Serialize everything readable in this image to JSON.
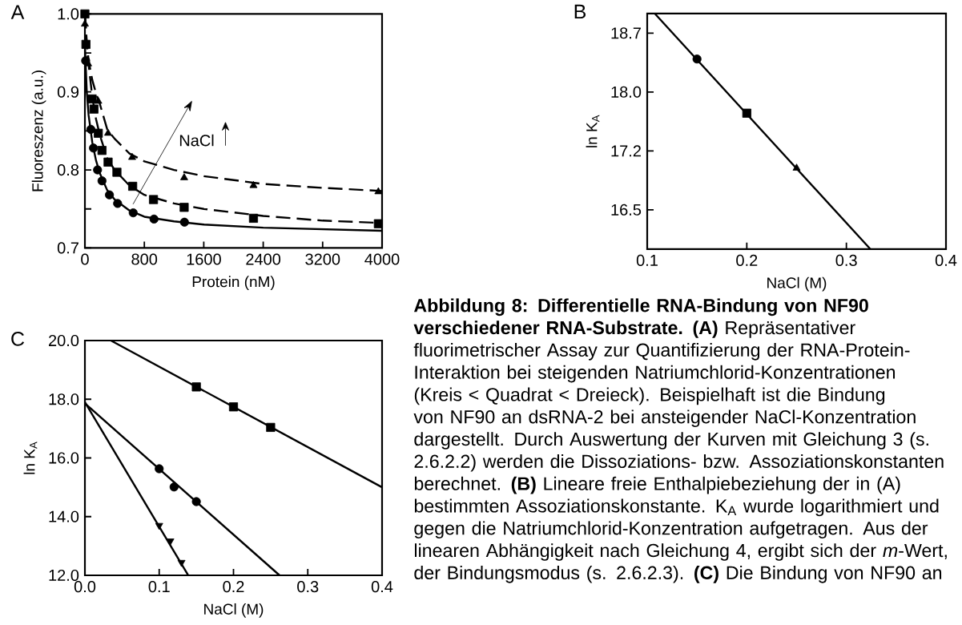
{
  "chart_data": [
    {
      "type": "scatter",
      "title": "A",
      "xlabel": "Protein (nM)",
      "ylabel": "Fluoreszenz (a.u.)",
      "xlim": [
        0,
        4000
      ],
      "xticks": [
        0,
        800,
        1600,
        2400,
        3200,
        4000
      ],
      "ylim": [
        0.7,
        1.0
      ],
      "yticks": [
        0.7,
        {
          "value": 0.75,
          "label": null
        },
        0.8,
        {
          "value": 0.85,
          "label": null
        },
        0.9,
        {
          "value": 0.95,
          "label": null
        },
        {
          "value": 1.0,
          "label": "1.0"
        }
      ],
      "annotations": [
        "NaCl"
      ],
      "series": [
        {
          "type": "scatter",
          "marker": "circle",
          "color": "#000000",
          "x": [
            10,
            80,
            115,
            170,
            230,
            330,
            440,
            650,
            930,
            1340
          ],
          "values": [
            0.94,
            0.852,
            0.828,
            0.8,
            0.786,
            0.768,
            0.757,
            0.745,
            0.737,
            0.733
          ]
        },
        {
          "type": "scatter",
          "marker": "square",
          "color": "#000000",
          "x": [
            0,
            14,
            97,
            122,
            180,
            230,
            312,
            431,
            643,
            923,
            1336,
            2269,
            3950
          ],
          "values": [
            1.0,
            0.961,
            0.891,
            0.878,
            0.847,
            0.825,
            0.81,
            0.797,
            0.779,
            0.762,
            0.752,
            0.738,
            0.731
          ]
        },
        {
          "type": "scatter",
          "marker": "triangle",
          "color": "#000000",
          "x": [
            0,
            43,
            180,
            312,
            636,
            1336,
            2269,
            3950
          ],
          "values": [
            0.987,
            0.936,
            0.888,
            0.847,
            0.816,
            0.79,
            0.78,
            0.772
          ]
        },
        {
          "type": "line",
          "line_style": "solid",
          "color": "#000000",
          "x": [
            0,
            25,
            50,
            100,
            150,
            200,
            300,
            400,
            600,
            800,
            1200,
            1600,
            2400,
            3200,
            4000
          ],
          "values": [
            0.96,
            0.9,
            0.87,
            0.835,
            0.812,
            0.796,
            0.774,
            0.762,
            0.748,
            0.74,
            0.734,
            0.73,
            0.726,
            0.724,
            0.722
          ]
        },
        {
          "type": "line",
          "line_style": "dashed",
          "color": "#000000",
          "x": [
            0,
            25,
            50,
            100,
            150,
            200,
            300,
            400,
            600,
            800,
            1200,
            1600,
            2400,
            3200,
            4000
          ],
          "values": [
            1.0,
            0.96,
            0.935,
            0.893,
            0.865,
            0.845,
            0.815,
            0.8,
            0.78,
            0.768,
            0.757,
            0.75,
            0.741,
            0.735,
            0.732
          ]
        },
        {
          "type": "line",
          "line_style": "dashed",
          "color": "#000000",
          "x": [
            0,
            25,
            50,
            100,
            150,
            200,
            300,
            400,
            600,
            800,
            1200,
            1600,
            2400,
            3200,
            4000
          ],
          "values": [
            1.0,
            0.965,
            0.94,
            0.915,
            0.898,
            0.885,
            0.852,
            0.84,
            0.821,
            0.811,
            0.8,
            0.792,
            0.782,
            0.777,
            0.773
          ]
        }
      ]
    },
    {
      "type": "scatter",
      "title": "B",
      "xlabel": "NaCl (M)",
      "ylabel": "ln K$_{A}$",
      "xlim": [
        0.1,
        0.4
      ],
      "xticks": [
        0.1,
        0.2,
        0.3,
        0.4
      ],
      "ylim": [
        16.0,
        19.0
      ],
      "yticks": [
        16.5,
        {
          "value": 17.25,
          "label": "17.2"
        },
        {
          "value": 18.0,
          "label": "18.0"
        },
        {
          "value": 18.75,
          "label": "18.7"
        }
      ],
      "series": [
        {
          "type": "scatter",
          "marker": "circle",
          "color": "#000000",
          "x": [
            0.15
          ],
          "values": [
            18.42
          ]
        },
        {
          "type": "scatter",
          "marker": "square",
          "color": "#000000",
          "x": [
            0.2
          ],
          "values": [
            17.73
          ]
        },
        {
          "type": "scatter",
          "marker": "triangle",
          "color": "#000000",
          "x": [
            0.25
          ],
          "values": [
            17.03
          ]
        },
        {
          "type": "line",
          "line_style": "solid",
          "color": "#000000",
          "x": [
            0.1075,
            0.324
          ],
          "values": [
            19.0,
            16.0
          ]
        }
      ]
    },
    {
      "type": "scatter",
      "title": "C",
      "xlabel": "NaCl (M)",
      "ylabel": "ln K$_{A}$",
      "xlim": [
        0.0,
        0.4
      ],
      "xticks": [
        {
          "value": 0.0,
          "label": "0.0"
        },
        0.1,
        0.2,
        0.3,
        0.4
      ],
      "ylim": [
        12.0,
        20.0
      ],
      "yticks": [
        {
          "value": 12.0,
          "label": "12.0"
        },
        {
          "value": 14.0,
          "label": "14.0"
        },
        {
          "value": 16.0,
          "label": "16.0"
        },
        {
          "value": 18.0,
          "label": "18.0"
        },
        {
          "value": 20.0,
          "label": "20.0"
        }
      ],
      "series": [
        {
          "type": "scatter",
          "marker": "square",
          "color": "#000000",
          "x": [
            0.15,
            0.2,
            0.25
          ],
          "values": [
            18.42,
            17.74,
            17.04
          ]
        },
        {
          "type": "scatter",
          "marker": "circle",
          "color": "#000000",
          "x": [
            0.1,
            0.12,
            0.15
          ],
          "values": [
            15.63,
            15.01,
            14.51
          ]
        },
        {
          "type": "scatter",
          "marker": "triangle-down",
          "color": "#000000",
          "x": [
            0.1,
            0.115,
            0.13
          ],
          "values": [
            13.7,
            13.17,
            12.44
          ]
        },
        {
          "type": "line",
          "line_style": "solid",
          "color": "#000000",
          "x": [
            0.035,
            0.4
          ],
          "values": [
            20.0,
            15.0
          ]
        },
        {
          "type": "line",
          "line_style": "solid",
          "color": "#000000",
          "x": [
            0.0,
            0.262
          ],
          "values": [
            17.86,
            12.0
          ]
        },
        {
          "type": "line",
          "line_style": "solid",
          "color": "#000000",
          "x": [
            0.0,
            0.139
          ],
          "values": [
            17.9,
            12.0
          ]
        }
      ]
    },
    {
      "type": "other",
      "annotations": [
        "**Abbildung 8: Differentielle RNA-Bindung von NF90 verschiedener RNA-Substrate.** **(A)** Repräsentativer fluorimetrischer Assay zur Quantifizierung der RNA-Protein-Interaktion bei steigenden Natriumchlorid-Konzentrationen (Kreis < Quadrat < Dreieck). Beispielhaft ist die Bindung von NF90 an dsRNA-2 bei ansteigender NaCl-Konzentration dargestellt. Durch Auswertung der Kurven mit Gleichung 3 (s. 2.6.2.2) werden die Dissoziations- bzw. Assoziationskonstanten berechnet. **(B)** Lineare freie Enthalpiebeziehung der in (A) bestimmten Assoziationskonstante. K$_{A}$ wurde logarithmiert und gegen die Natriumchlorid-Konzentration aufgetragen. Aus der linearen Abhängigkeit nach Gleichung 4, ergibt sich der *m*-Wert, der Bindungsmodus (s. 2.6.2.3). **(C)** Die Bindung von NF90 an"
      ]
    }
  ]
}
